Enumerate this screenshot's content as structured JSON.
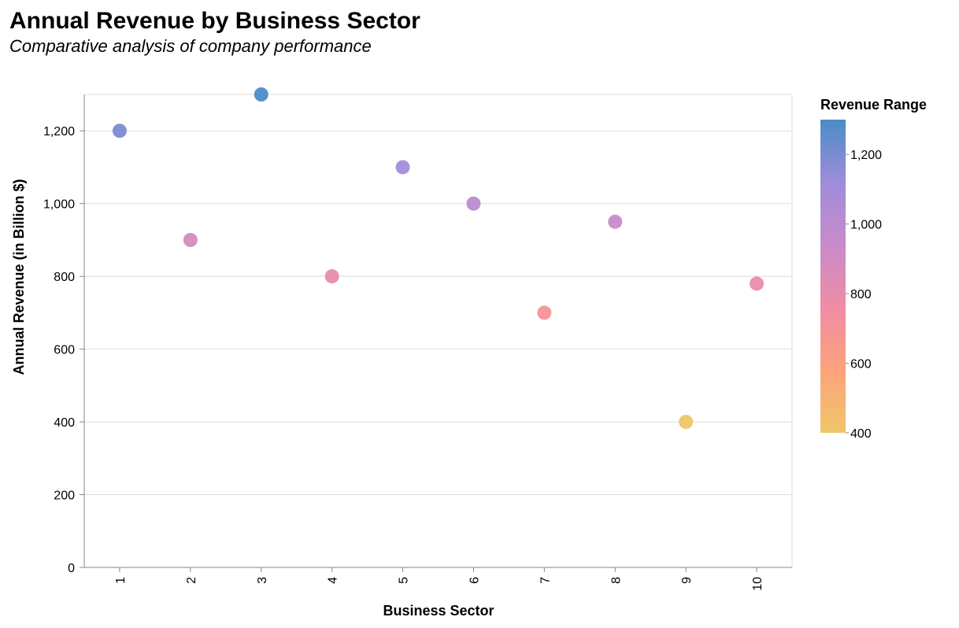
{
  "chart_data": {
    "type": "scatter",
    "title": "Annual Revenue by Business Sector",
    "subtitle": "Comparative analysis of company performance",
    "xlabel": "Business Sector",
    "ylabel": "Annual Revenue (in Billion $)",
    "x": [
      1,
      2,
      3,
      4,
      5,
      6,
      7,
      8,
      9,
      10
    ],
    "y": [
      1200,
      900,
      1300,
      800,
      1100,
      1000,
      700,
      950,
      400,
      780
    ],
    "x_ticks": [
      "1",
      "2",
      "3",
      "4",
      "5",
      "6",
      "7",
      "8",
      "9",
      "10"
    ],
    "y_ticks": [
      0,
      200,
      400,
      600,
      800,
      1000,
      1200
    ],
    "y_tick_labels": [
      "0",
      "200",
      "400",
      "600",
      "800",
      "1,000",
      "1,200"
    ],
    "ylim": [
      0,
      1300
    ],
    "grid": true,
    "legend": {
      "title": "Revenue Range",
      "placement": "right",
      "range": [
        400,
        1300
      ],
      "ticks": [
        400,
        600,
        800,
        1000,
        1200
      ],
      "tick_labels": [
        "400",
        "600",
        "800",
        "1,000",
        "1,200"
      ],
      "color_stops": [
        "#eec66a",
        "#fda27c",
        "#f08ca5",
        "#c98bc9",
        "#9f8cdb",
        "#4a8dc6"
      ]
    }
  }
}
